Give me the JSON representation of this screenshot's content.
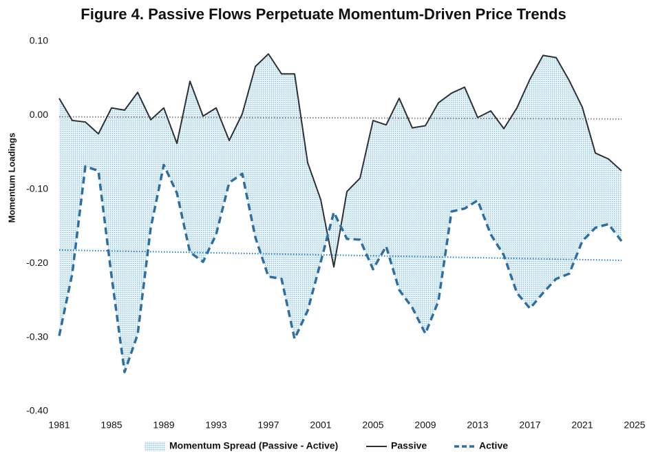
{
  "chart_data": {
    "type": "line",
    "title": "Figure 4. Passive Flows Perpetuate Momentum-Driven Price Trends",
    "y_label": "Momentum Loadings",
    "x": [
      1981,
      1982,
      1983,
      1984,
      1985,
      1986,
      1987,
      1988,
      1989,
      1990,
      1991,
      1992,
      1993,
      1994,
      1995,
      1996,
      1997,
      1998,
      1999,
      2000,
      2001,
      2002,
      2003,
      2004,
      2005,
      2006,
      2007,
      2008,
      2009,
      2010,
      2011,
      2012,
      2013,
      2014,
      2015,
      2016,
      2017,
      2018,
      2019,
      2020,
      2021,
      2022,
      2023,
      2024
    ],
    "spread": {
      "name": "Momentum Spread (Passive - Active)",
      "color": "#8fc3dc"
    },
    "series": [
      {
        "name": "Passive",
        "color": "#2b2f36",
        "style": "solid",
        "values": [
          0.023,
          -0.007,
          -0.009,
          -0.025,
          0.01,
          0.007,
          0.031,
          -0.006,
          0.01,
          -0.038,
          0.046,
          -0.001,
          0.01,
          -0.034,
          0.002,
          0.066,
          0.083,
          0.056,
          0.056,
          -0.064,
          -0.114,
          -0.205,
          -0.103,
          -0.085,
          -0.007,
          -0.013,
          0.023,
          -0.017,
          -0.014,
          0.017,
          0.03,
          0.038,
          -0.003,
          0.006,
          -0.018,
          0.01,
          0.049,
          0.081,
          0.078,
          0.047,
          0.011,
          -0.051,
          -0.059,
          -0.075
        ]
      },
      {
        "name": "Active",
        "color": "#2e6fa3",
        "style": "dashed",
        "values": [
          -0.298,
          -0.214,
          -0.069,
          -0.075,
          -0.217,
          -0.347,
          -0.296,
          -0.152,
          -0.067,
          -0.105,
          -0.185,
          -0.198,
          -0.161,
          -0.091,
          -0.079,
          -0.165,
          -0.218,
          -0.221,
          -0.302,
          -0.264,
          -0.198,
          -0.131,
          -0.167,
          -0.168,
          -0.208,
          -0.177,
          -0.236,
          -0.26,
          -0.295,
          -0.251,
          -0.13,
          -0.126,
          -0.115,
          -0.161,
          -0.189,
          -0.24,
          -0.261,
          -0.24,
          -0.221,
          -0.214,
          -0.17,
          -0.152,
          -0.147,
          -0.17
        ]
      }
    ],
    "trends": [
      {
        "color": "#808080",
        "x": [
          1981,
          2024
        ],
        "values": [
          -0.002,
          -0.005
        ]
      },
      {
        "color": "#1f7ad6",
        "x": [
          1981,
          2024
        ],
        "values": [
          -0.182,
          -0.196
        ]
      }
    ],
    "xlim": [
      1981,
      2025
    ],
    "xticks": [
      1981,
      1985,
      1989,
      1993,
      1997,
      2001,
      2005,
      2009,
      2013,
      2017,
      2021,
      2025
    ],
    "ylim": [
      -0.4,
      0.1
    ],
    "yticks": [
      {
        "value": -0.4,
        "label": "-0.40"
      },
      {
        "value": -0.3,
        "label": "-0.30"
      },
      {
        "value": -0.2,
        "label": "-0.20"
      },
      {
        "value": -0.1,
        "label": "-0.10"
      },
      {
        "value": 0,
        "label": "0.00"
      },
      {
        "value": 0.1,
        "label": "0.10"
      }
    ],
    "grid": false,
    "legend": "bottom"
  }
}
